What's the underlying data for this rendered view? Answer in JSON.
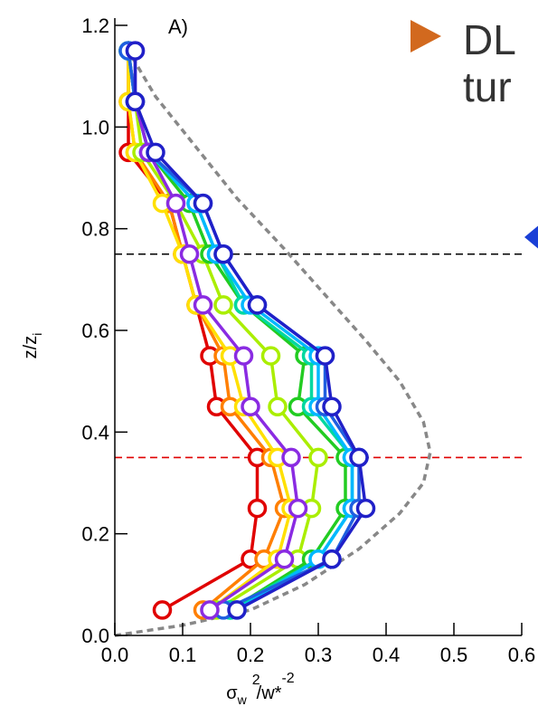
{
  "slide": {
    "bullet_text_line1": "DL",
    "bullet_text_line2": "tur",
    "bullet_color": "#d2691e",
    "pointer_color": "#1a3fd6"
  },
  "chart_data": {
    "type": "line",
    "panel_label": "A)",
    "ylabel": {
      "main": "z/z",
      "sub": "i"
    },
    "xlabel": {
      "sigma": "σ",
      "w_sub": "w",
      "sup2": "2",
      "div": "/w",
      "star": "*",
      "supm2": "-2"
    },
    "xlim": [
      0,
      0.6
    ],
    "ylim": [
      0,
      1.2
    ],
    "x_ticks": [
      "0.0",
      "0.1",
      "0.2",
      "0.3",
      "0.4",
      "0.5",
      "0.6"
    ],
    "y_ticks": [
      "0.0",
      "0.2",
      "0.4",
      "0.6",
      "0.8",
      "1.0",
      "1.2"
    ],
    "grid": false,
    "z": [
      0.05,
      0.15,
      0.25,
      0.35,
      0.45,
      0.55,
      0.65,
      0.75,
      0.85,
      0.95,
      1.05,
      1.15
    ],
    "hlines": [
      {
        "y": 0.75,
        "color": "#000000"
      },
      {
        "y": 0.35,
        "color": "#e00000"
      }
    ],
    "reference_curve": {
      "color": "#888888",
      "x": [
        0.0,
        0.1,
        0.2,
        0.28,
        0.36,
        0.42,
        0.455,
        0.465,
        0.455,
        0.42,
        0.37,
        0.31,
        0.25,
        0.18,
        0.12,
        0.06,
        0.02
      ],
      "y": [
        0.0,
        0.02,
        0.05,
        0.1,
        0.17,
        0.24,
        0.3,
        0.36,
        0.42,
        0.5,
        0.58,
        0.67,
        0.76,
        0.86,
        0.96,
        1.06,
        1.15
      ]
    },
    "series": [
      {
        "color": "#e00000",
        "values": [
          0.07,
          0.2,
          0.21,
          0.21,
          0.15,
          0.14,
          0.12,
          0.1,
          0.08,
          0.02,
          0.02,
          0.02
        ]
      },
      {
        "color": "#ff7f00",
        "values": [
          0.13,
          0.22,
          0.25,
          0.23,
          0.17,
          0.16,
          0.12,
          0.1,
          0.08,
          0.03,
          0.02,
          0.02
        ]
      },
      {
        "color": "#ffe000",
        "values": [
          0.14,
          0.24,
          0.26,
          0.24,
          0.19,
          0.17,
          0.12,
          0.1,
          0.07,
          0.03,
          0.02,
          0.02
        ]
      },
      {
        "color": "#aaee00",
        "values": [
          0.15,
          0.27,
          0.29,
          0.3,
          0.24,
          0.23,
          0.16,
          0.13,
          0.09,
          0.04,
          0.03,
          0.02
        ]
      },
      {
        "color": "#22cc22",
        "values": [
          0.17,
          0.29,
          0.34,
          0.34,
          0.27,
          0.28,
          0.19,
          0.14,
          0.11,
          0.05,
          0.03,
          0.02
        ]
      },
      {
        "color": "#00d8a0",
        "values": [
          0.17,
          0.3,
          0.35,
          0.35,
          0.29,
          0.29,
          0.19,
          0.15,
          0.12,
          0.05,
          0.03,
          0.02
        ]
      },
      {
        "color": "#00b8ff",
        "values": [
          0.18,
          0.3,
          0.35,
          0.35,
          0.3,
          0.3,
          0.2,
          0.15,
          0.12,
          0.05,
          0.03,
          0.02
        ]
      },
      {
        "color": "#1f5fe0",
        "values": [
          0.16,
          0.32,
          0.36,
          0.36,
          0.31,
          0.31,
          0.21,
          0.16,
          0.13,
          0.05,
          0.03,
          0.02
        ]
      },
      {
        "color": "#8a2be2",
        "values": [
          0.14,
          0.25,
          0.27,
          0.26,
          0.2,
          0.19,
          0.13,
          0.11,
          0.09,
          0.05,
          0.03,
          0.03
        ]
      },
      {
        "color": "#2020c8",
        "values": [
          0.18,
          0.32,
          0.37,
          0.36,
          0.32,
          0.31,
          0.21,
          0.16,
          0.13,
          0.06,
          0.03,
          0.03
        ]
      }
    ]
  }
}
